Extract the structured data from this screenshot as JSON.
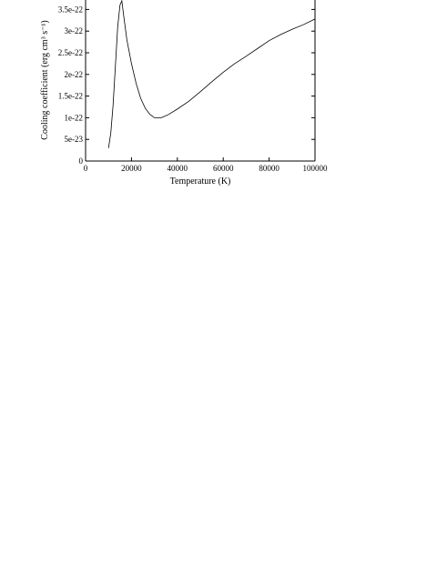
{
  "chart_data": {
    "type": "line",
    "title": "",
    "xlabel": "Temperature (K)",
    "ylabel": "Cooling coefficient (erg cm³ s⁻¹)",
    "xlim": [
      0,
      100000
    ],
    "ylim": [
      0,
      3.6e-22
    ],
    "grid": false,
    "x_ticks": [
      {
        "value": 0,
        "label": "0"
      },
      {
        "value": 20000,
        "label": "20000"
      },
      {
        "value": 40000,
        "label": "40000"
      },
      {
        "value": 60000,
        "label": "60000"
      },
      {
        "value": 80000,
        "label": "80000"
      },
      {
        "value": 100000,
        "label": "100000"
      }
    ],
    "y_ticks": [
      {
        "value": 0,
        "label": "0"
      },
      {
        "value": 5e-23,
        "label": "5e-23"
      },
      {
        "value": 1e-22,
        "label": "1e-22"
      },
      {
        "value": 1.5e-22,
        "label": "1.5e-22"
      },
      {
        "value": 2e-22,
        "label": "2e-22"
      },
      {
        "value": 2.5e-22,
        "label": "2.5e-22"
      },
      {
        "value": 3e-22,
        "label": "3e-22"
      },
      {
        "value": 3.5e-22,
        "label": "3.5e-22"
      }
    ],
    "series": [
      {
        "x": [
          10000,
          11000,
          12000,
          13000,
          14000,
          15000,
          15800,
          16500,
          18000,
          20000,
          22000,
          24000,
          26000,
          28000,
          30000,
          33000,
          36000,
          40000,
          45000,
          50000,
          55000,
          60000,
          65000,
          70000,
          75000,
          80000,
          85000,
          90000,
          95000,
          100000
        ],
        "y": [
          3e-23,
          6.5e-23,
          1.3e-22,
          2.2e-22,
          3.1e-22,
          3.6e-22,
          3.7e-22,
          3.4e-22,
          2.8e-22,
          2.25e-22,
          1.8e-22,
          1.45e-22,
          1.22e-22,
          1.08e-22,
          1e-22,
          1e-22,
          1.07e-22,
          1.2e-22,
          1.38e-22,
          1.6e-22,
          1.83e-22,
          2.05e-22,
          2.25e-22,
          2.42e-22,
          2.6e-22,
          2.78e-22,
          2.92e-22,
          3.04e-22,
          3.15e-22,
          3.28e-22
        ]
      }
    ]
  }
}
